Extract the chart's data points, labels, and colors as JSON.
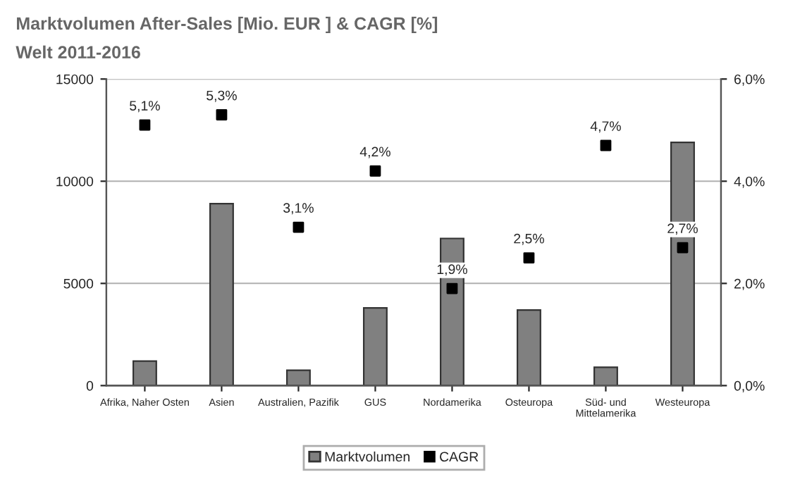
{
  "chart_data": {
    "type": "bar",
    "title": "Marktvolumen After-Sales [Mio. EUR ] & CAGR [%]",
    "subtitle": "Welt 2011-2016",
    "categories": [
      "Afrika, Naher Osten",
      "Asien",
      "Australien, Pazifik",
      "GUS",
      "Nordamerika",
      "Osteuropa",
      "Süd- und\nMittelamerika",
      "Westeuropa"
    ],
    "series": [
      {
        "name": "Marktvolumen",
        "color": "#808080",
        "values": [
          1200,
          8900,
          750,
          3800,
          7200,
          3700,
          900,
          11900
        ]
      },
      {
        "name": "CAGR",
        "type": "scatter",
        "axis": "y2",
        "color": "#000000",
        "marker": "square",
        "values": [
          5.1,
          5.3,
          3.1,
          4.2,
          1.9,
          2.5,
          4.7,
          2.7
        ],
        "value_labels": [
          "5,1%",
          "5,3%",
          "3,1%",
          "4,2%",
          "1,9%",
          "2,5%",
          "4,7%",
          "2,7%"
        ]
      }
    ],
    "ylim": [
      0,
      15000
    ],
    "yticks": [
      0,
      5000,
      10000,
      15000
    ],
    "y2lim": [
      0,
      6
    ],
    "y2ticks": [
      {
        "value": 0,
        "label": "0,0%"
      },
      {
        "value": 2,
        "label": "2,0%"
      },
      {
        "value": 4,
        "label": "4,0%"
      },
      {
        "value": 6,
        "label": "6,0%"
      }
    ],
    "grid": "y",
    "legend": "bottom"
  }
}
